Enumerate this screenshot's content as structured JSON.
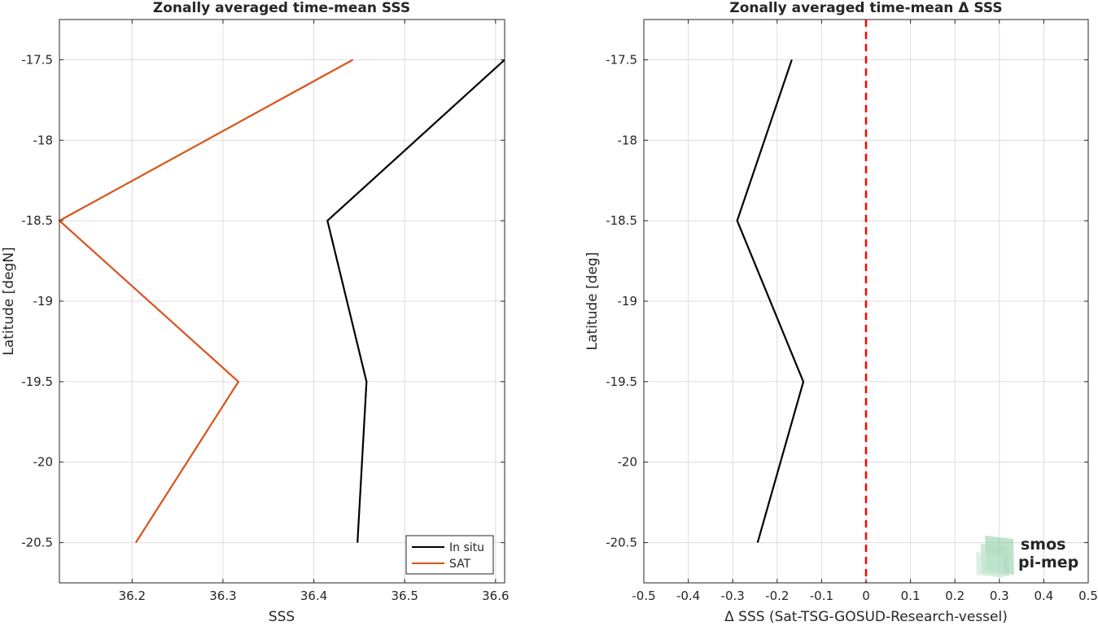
{
  "chart_data": [
    {
      "type": "line",
      "title": "Zonally averaged time-mean SSS",
      "xlabel": "SSS",
      "ylabel": "Latitude [degN]",
      "xlim": [
        36.12,
        36.61
      ],
      "ylim": [
        -20.75,
        -17.25
      ],
      "xticks": [
        36.2,
        36.3,
        36.4,
        36.5,
        36.6
      ],
      "yticks": [
        -17.5,
        -18,
        -18.5,
        -19,
        -19.5,
        -20,
        -20.5
      ],
      "grid": true,
      "legend_position": "bottom-right",
      "series": [
        {
          "name": "In situ",
          "color": "#000000",
          "points": [
            {
              "x": 36.61,
              "y": -17.5
            },
            {
              "x": 36.415,
              "y": -18.5
            },
            {
              "x": 36.458,
              "y": -19.5
            },
            {
              "x": 36.448,
              "y": -20.5
            }
          ]
        },
        {
          "name": "SAT",
          "color": "#D95319",
          "points": [
            {
              "x": 36.443,
              "y": -17.5
            },
            {
              "x": 36.12,
              "y": -18.5
            },
            {
              "x": 36.317,
              "y": -19.5
            },
            {
              "x": 36.204,
              "y": -20.5
            }
          ]
        }
      ]
    },
    {
      "type": "line",
      "title": "Zonally averaged time-mean Δ SSS",
      "xlabel": "Δ SSS (Sat-TSG-GOSUD-Research-vessel)",
      "ylabel": "Latitude [deg]",
      "xlim": [
        -0.5,
        0.5
      ],
      "ylim": [
        -20.75,
        -17.25
      ],
      "xticks": [
        -0.5,
        -0.4,
        -0.3,
        -0.2,
        -0.1,
        0,
        0.1,
        0.2,
        0.3,
        0.4,
        0.5
      ],
      "yticks": [
        -17.5,
        -18,
        -18.5,
        -19,
        -19.5,
        -20,
        -20.5
      ],
      "grid": true,
      "reference_line": {
        "x": 0,
        "color": "#FF0000",
        "style": "dashed"
      },
      "series": [
        {
          "color": "#000000",
          "points": [
            {
              "x": -0.167,
              "y": -17.5
            },
            {
              "x": -0.29,
              "y": -18.5
            },
            {
              "x": -0.141,
              "y": -19.5
            },
            {
              "x": -0.244,
              "y": -20.5
            }
          ]
        }
      ]
    }
  ],
  "logo": {
    "line1": "smos",
    "line2": "pi-mep",
    "color": "#8CC9A4"
  }
}
